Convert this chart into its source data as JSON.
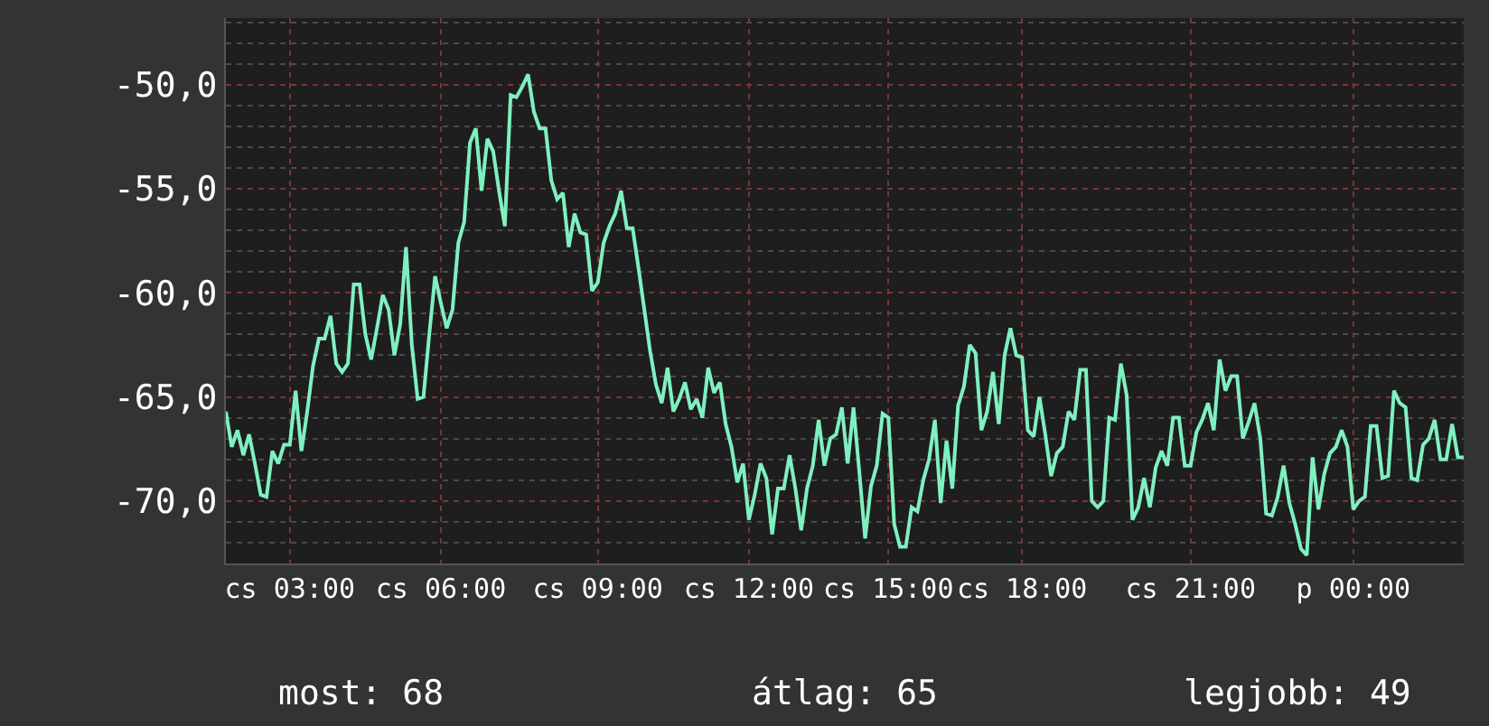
{
  "chart_data": {
    "type": "line",
    "categories": [
      null,
      null,
      null,
      null,
      null,
      null,
      null,
      null,
      null,
      null,
      null,
      "cs 03:00",
      null,
      null,
      null,
      null,
      null,
      null,
      null,
      null,
      null,
      null,
      null,
      null,
      null,
      null,
      null,
      null,
      null,
      null,
      null,
      null,
      null,
      null,
      null,
      null,
      null,
      "cs 06:00",
      null,
      null,
      null,
      null,
      null,
      null,
      null,
      null,
      null,
      null,
      null,
      null,
      null,
      null,
      null,
      null,
      null,
      null,
      null,
      null,
      null,
      null,
      null,
      null,
      null,
      null,
      "cs 09:00",
      null,
      null,
      null,
      null,
      null,
      null,
      null,
      null,
      null,
      null,
      null,
      null,
      null,
      null,
      null,
      null,
      null,
      null,
      null,
      null,
      null,
      null,
      null,
      null,
      null,
      "cs 12:00",
      null,
      null,
      null,
      null,
      null,
      null,
      null,
      null,
      null,
      null,
      null,
      null,
      null,
      null,
      null,
      null,
      null,
      null,
      null,
      null,
      null,
      null,
      null,
      "cs 15:00",
      null,
      null,
      null,
      null,
      null,
      null,
      null,
      null,
      null,
      null,
      null,
      null,
      null,
      null,
      null,
      null,
      null,
      null,
      null,
      null,
      null,
      null,
      "cs 18:00",
      null,
      null,
      null,
      null,
      null,
      null,
      null,
      null,
      null,
      null,
      null,
      null,
      null,
      null,
      null,
      null,
      null,
      null,
      null,
      null,
      null,
      null,
      null,
      null,
      null,
      null,
      null,
      null,
      "cs 21:00",
      null,
      null,
      null,
      null,
      null,
      null,
      null,
      null,
      null,
      null,
      null,
      null,
      null,
      null,
      null,
      null,
      null,
      null,
      null,
      null,
      null,
      null,
      null,
      null,
      null,
      null,
      null,
      "p 00:00",
      null,
      null,
      null,
      null,
      null,
      null,
      null,
      null,
      null,
      null,
      null,
      null,
      null,
      null,
      null,
      null,
      null,
      null,
      null
    ],
    "series": [
      {
        "color": "#7ff0c0",
        "values": [
          -65.7,
          -67.4,
          -66.6,
          -67.8,
          -66.8,
          -68.2,
          -69.7,
          -69.8,
          -67.6,
          -68.2,
          -67.3,
          -67.3,
          -64.7,
          -67.6,
          -65.7,
          -63.5,
          -62.2,
          -62.2,
          -61.1,
          -63.4,
          -63.8,
          -63.4,
          -59.6,
          -59.6,
          -62.0,
          -63.2,
          -61.7,
          -60.1,
          -60.8,
          -63.0,
          -61.5,
          -57.8,
          -62.5,
          -65.1,
          -65.0,
          -62.0,
          -59.2,
          -60.5,
          -61.7,
          -60.8,
          -57.6,
          -56.6,
          -52.8,
          -52.1,
          -55.1,
          -52.6,
          -53.2,
          -55.1,
          -56.8,
          -50.5,
          -50.6,
          -50.1,
          -49.5,
          -51.3,
          -52.1,
          -52.1,
          -54.6,
          -55.5,
          -55.2,
          -57.8,
          -56.2,
          -57.1,
          -57.2,
          -59.9,
          -59.5,
          -57.6,
          -56.8,
          -56.2,
          -55.1,
          -56.9,
          -56.9,
          -58.8,
          -60.8,
          -62.8,
          -64.4,
          -65.3,
          -63.6,
          -65.7,
          -65.1,
          -64.3,
          -65.6,
          -65.1,
          -66.0,
          -63.6,
          -64.8,
          -64.3,
          -66.3,
          -67.4,
          -69.1,
          -68.2,
          -70.9,
          -69.7,
          -68.2,
          -68.9,
          -71.6,
          -69.4,
          -69.4,
          -67.8,
          -69.4,
          -71.4,
          -69.4,
          -68.3,
          -66.1,
          -68.3,
          -67.0,
          -66.8,
          -65.5,
          -68.2,
          -65.5,
          -68.6,
          -71.8,
          -69.3,
          -68.3,
          -65.8,
          -66.0,
          -71.1,
          -72.2,
          -72.2,
          -70.3,
          -70.5,
          -69.0,
          -68.0,
          -66.1,
          -70.1,
          -67.1,
          -69.4,
          -65.4,
          -64.5,
          -62.5,
          -62.9,
          -66.6,
          -65.7,
          -63.8,
          -66.3,
          -63.0,
          -61.7,
          -63.0,
          -63.1,
          -66.6,
          -66.9,
          -65.0,
          -66.8,
          -68.8,
          -67.7,
          -67.4,
          -65.7,
          -66.1,
          -63.7,
          -63.7,
          -70.0,
          -70.3,
          -70.0,
          -66.0,
          -66.1,
          -63.4,
          -64.9,
          -70.9,
          -70.3,
          -68.9,
          -70.3,
          -68.4,
          -67.6,
          -68.3,
          -66.0,
          -66.0,
          -68.3,
          -68.3,
          -66.7,
          -66.1,
          -65.3,
          -66.6,
          -63.2,
          -64.7,
          -64.0,
          -64.0,
          -67.0,
          -66.2,
          -65.3,
          -67.0,
          -70.6,
          -70.7,
          -69.8,
          -68.3,
          -70.1,
          -71.1,
          -72.3,
          -72.6,
          -67.9,
          -70.4,
          -68.7,
          -67.7,
          -67.4,
          -66.6,
          -67.4,
          -70.4,
          -70.0,
          -69.8,
          -66.4,
          -66.4,
          -68.9,
          -68.8,
          -64.7,
          -65.3,
          -65.5,
          -68.9,
          -69.0,
          -67.3,
          -67.0,
          -66.1,
          -68.0,
          -68.0,
          -66.3,
          -67.9,
          -67.9
        ]
      }
    ],
    "ylim": [
      -73.0,
      -46.8
    ],
    "yticks": [
      {
        "value": -70,
        "label": "-70,0"
      },
      {
        "value": -65,
        "label": "-65,0"
      },
      {
        "value": -60,
        "label": "-60,0"
      },
      {
        "value": -55,
        "label": "-55,0"
      },
      {
        "value": -50,
        "label": "-50,0"
      }
    ],
    "grid": true,
    "annotations": [
      "most: 68",
      "átlag: 65",
      "legjobb: 49"
    ]
  }
}
